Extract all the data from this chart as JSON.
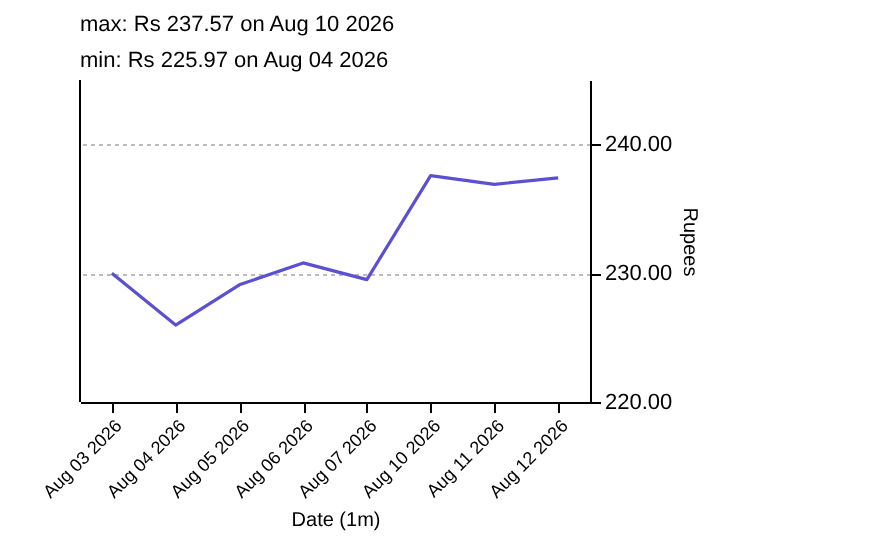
{
  "chart_data": {
    "type": "line",
    "annotations": [
      "max: Rs 237.57 on Aug 10 2026",
      "min: Rs 225.97 on Aug 04 2026"
    ],
    "xlabel": "Date (1m)",
    "ylabel": "Rupees",
    "categories": [
      "Aug 03 2026",
      "Aug 04 2026",
      "Aug 05 2026",
      "Aug 06 2026",
      "Aug 07 2026",
      "Aug 10 2026",
      "Aug 11 2026",
      "Aug 12 2026"
    ],
    "series": [
      {
        "color": "#5a50d0",
        "values": [
          230.0,
          225.97,
          229.1,
          230.8,
          229.5,
          237.57,
          236.9,
          237.4
        ]
      }
    ],
    "ylim": [
      220,
      245
    ],
    "yticks": [
      {
        "value": 220,
        "label": "220.00"
      },
      {
        "value": 230,
        "label": "230.00"
      },
      {
        "value": 240,
        "label": "240.00"
      }
    ],
    "grid": "y",
    "legend": false
  }
}
